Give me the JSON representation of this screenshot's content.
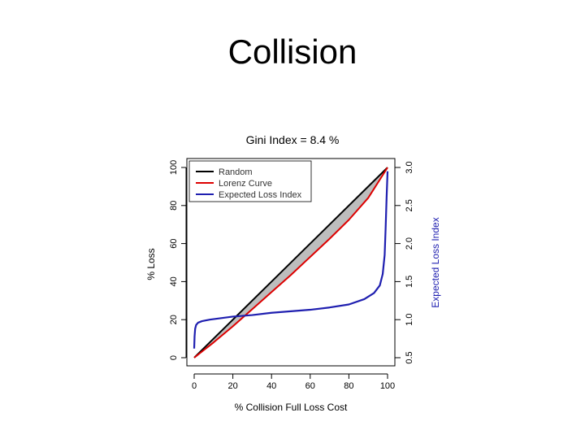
{
  "slide": {
    "title": "Collision"
  },
  "chart_data": {
    "type": "line",
    "title": "Gini Index = 8.4 %",
    "xlabel": "% Collision Full Loss Cost",
    "ylabel": "% Loss",
    "y2label": "Expected Loss Index",
    "xlim": [
      0,
      100
    ],
    "ylim": [
      0,
      100
    ],
    "y2lim": [
      0.5,
      3.0
    ],
    "xticks": [
      0,
      20,
      40,
      60,
      80,
      100
    ],
    "yticks": [
      0,
      20,
      40,
      60,
      80,
      100
    ],
    "y2ticks": [
      0.5,
      1.0,
      1.5,
      2.0,
      2.5,
      3.0
    ],
    "legend_position": "top-left",
    "shaded_area_color": "#bdbdbd",
    "series": [
      {
        "name": "Random",
        "color": "#000000",
        "axis": "left",
        "x": [
          0,
          100
        ],
        "y": [
          0,
          100
        ]
      },
      {
        "name": "Lorenz Curve",
        "color": "#dd0000",
        "axis": "left",
        "x": [
          0,
          10,
          20,
          30,
          40,
          50,
          60,
          70,
          80,
          90,
          100
        ],
        "y": [
          0,
          8.0,
          16.5,
          25.5,
          34.5,
          43.5,
          53.0,
          62.5,
          72.5,
          84.0,
          100
        ]
      },
      {
        "name": "Expected Loss Index",
        "color": "#1f1fb0",
        "axis": "right",
        "x": [
          0.0,
          0.2,
          0.5,
          1.0,
          2.0,
          4.0,
          8.0,
          14.0,
          20.0,
          30.0,
          40.0,
          50.0,
          60.0,
          70.0,
          80.0,
          88.0,
          93.0,
          96.0,
          97.5,
          98.5,
          99.0,
          99.5,
          100.0
        ],
        "y": [
          0.62,
          0.78,
          0.88,
          0.93,
          0.96,
          0.98,
          1.0,
          1.02,
          1.04,
          1.06,
          1.09,
          1.11,
          1.13,
          1.16,
          1.2,
          1.27,
          1.35,
          1.45,
          1.6,
          1.85,
          2.2,
          2.6,
          2.95
        ]
      }
    ]
  }
}
